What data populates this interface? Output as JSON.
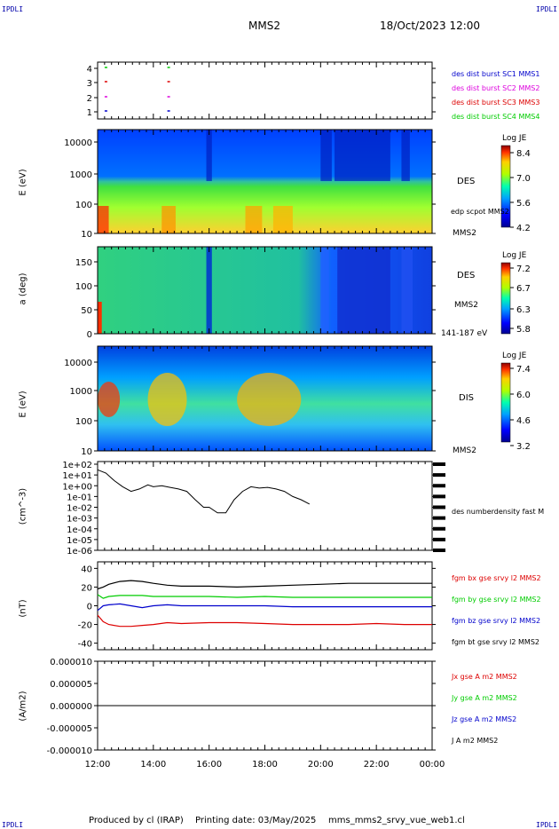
{
  "header": {
    "corner_tl": "IPDLI",
    "corner_tr": "IPDLI",
    "corner_bl": "IPDLI",
    "corner_br": "IPDLI",
    "spacecraft": "MMS2",
    "date": "18/Oct/2023 12:00"
  },
  "footer": {
    "produced": "Produced by cl (IRAP)",
    "printing": "Printing date: 03/May/2025",
    "file": "mms_mms2_srvy_vue_web1.cl"
  },
  "colors": {
    "blue": "#0000cc",
    "magenta": "#dd00dd",
    "red": "#dd0000",
    "green": "#00cc00",
    "black": "#000000"
  },
  "x_axis": {
    "ticks": [
      "12:00",
      "14:00",
      "16:00",
      "18:00",
      "20:00",
      "22:00",
      "00:00"
    ]
  },
  "chart_data": [
    {
      "type": "scatter",
      "panel": "burst",
      "yticks": [
        "4",
        "3",
        "2",
        "1"
      ],
      "legend": [
        "des dist burst SC1 MMS1",
        "des dist burst SC2 MMS2",
        "des dist burst SC3 MMS3",
        "des dist burst SC4 MMS4"
      ],
      "legend_colors": [
        "#0000cc",
        "#dd00dd",
        "#dd0000",
        "#00cc00"
      ],
      "marks": [
        {
          "sc": 4,
          "times": [
            12.3,
            14.55
          ]
        },
        {
          "sc": 3,
          "times": [
            12.3,
            14.55
          ]
        },
        {
          "sc": 2,
          "times": [
            12.3,
            14.55
          ]
        },
        {
          "sc": 1,
          "times": [
            12.3,
            14.55
          ]
        }
      ]
    },
    {
      "type": "heatmap",
      "panel": "des_energy",
      "ylabel": "E (eV)",
      "yticks": [
        "10000",
        "1000",
        "100",
        "10"
      ],
      "label": "DES",
      "sub_label": "MMS2",
      "overlay_label": "edp scpot MMS2",
      "colorbar": {
        "title": "Log JE",
        "ticks": [
          "8.4",
          "7.0",
          "5.6",
          "4.2"
        ]
      }
    },
    {
      "type": "heatmap",
      "panel": "des_pitch",
      "ylabel": "a (deg)",
      "yticks": [
        "150",
        "100",
        "50",
        "0"
      ],
      "label": "DES",
      "sub_label": "MMS2",
      "energy_label": "141-187 eV",
      "colorbar": {
        "title": "Log JE",
        "ticks": [
          "7.2",
          "6.7",
          "6.3",
          "5.8"
        ]
      }
    },
    {
      "type": "heatmap",
      "panel": "dis_energy",
      "ylabel": "E (eV)",
      "yticks": [
        "10000",
        "1000",
        "100",
        "10"
      ],
      "label": "DIS",
      "sub_label": "MMS2",
      "colorbar": {
        "title": "Log JE",
        "ticks": [
          "7.4",
          "6.0",
          "4.6",
          "3.2"
        ]
      }
    },
    {
      "type": "line",
      "panel": "density",
      "ylabel": "(cm^-3)",
      "yticks": [
        "1e+02",
        "1e+01",
        "1e+00",
        "1e-01",
        "1e-02",
        "1e-03",
        "1e-04",
        "1e-05",
        "1e-06"
      ],
      "legend": [
        "des numberdensity fast M"
      ],
      "x": [
        12.0,
        12.3,
        12.6,
        12.9,
        13.2,
        13.5,
        13.8,
        14.0,
        14.3,
        14.6,
        14.9,
        15.2,
        15.5,
        15.8,
        16.0,
        16.3,
        16.6,
        16.9,
        17.2,
        17.5,
        17.8,
        18.1,
        18.4,
        18.7,
        19.0,
        19.3,
        19.6
      ],
      "y": [
        30,
        15,
        3,
        0.8,
        0.3,
        0.5,
        1.2,
        0.8,
        1.0,
        0.7,
        0.5,
        0.3,
        0.05,
        0.01,
        0.01,
        0.003,
        0.003,
        0.05,
        0.3,
        0.8,
        0.6,
        0.7,
        0.5,
        0.3,
        0.1,
        0.05,
        0.02
      ]
    },
    {
      "type": "line",
      "panel": "bfield",
      "ylabel": "(nT)",
      "yticks": [
        "40",
        "20",
        "0",
        "-20",
        "-40"
      ],
      "ylim": [
        -47,
        47
      ],
      "legend": [
        "fgm bx gse srvy l2 MMS2",
        "fgm by gse srvy l2 MMS2",
        "fgm bz gse srvy l2 MMS2",
        "fgm bt gse srvy l2 MMS2"
      ],
      "legend_colors": [
        "#dd0000",
        "#00cc00",
        "#0000cc",
        "#000000"
      ],
      "x": [
        12.0,
        12.2,
        12.4,
        12.8,
        13.2,
        13.6,
        14.0,
        14.5,
        15.0,
        16.0,
        17.0,
        18.0,
        19.0,
        20.0,
        21.0,
        22.0,
        23.0,
        24.0
      ],
      "series": [
        {
          "values": [
            -10,
            -17,
            -20,
            -22,
            -22,
            -21,
            -20,
            -18,
            -19,
            -18,
            -18,
            -19,
            -20,
            -20,
            -20,
            -19,
            -20,
            -20
          ]
        },
        {
          "values": [
            12,
            8,
            10,
            11,
            11,
            11,
            10,
            10,
            10,
            10,
            9,
            10,
            9,
            9,
            9,
            9,
            9,
            9
          ]
        },
        {
          "values": [
            -5,
            0,
            1,
            2,
            0,
            -2,
            0,
            1,
            0,
            0,
            0,
            0,
            -1,
            -1,
            -1,
            -1,
            -1,
            -1
          ]
        },
        {
          "values": [
            18,
            20,
            23,
            26,
            27,
            26,
            24,
            22,
            21,
            21,
            20,
            21,
            22,
            23,
            24,
            24,
            24,
            24
          ]
        }
      ]
    },
    {
      "type": "line",
      "panel": "current",
      "ylabel": "(A/m2)",
      "yticks": [
        "0.000010",
        "0.000005",
        "0.000000",
        "-0.000005",
        "-0.000010"
      ],
      "ylim": [
        -1e-05,
        1e-05
      ],
      "legend": [
        "Jx gse A m2 MMS2",
        "Jy gse A m2 MMS2",
        "Jz gse A m2 MMS2",
        "J A m2 MMS2"
      ],
      "legend_colors": [
        "#dd0000",
        "#00cc00",
        "#0000cc",
        "#000000"
      ],
      "x": [
        12.0,
        24.0
      ],
      "y": [
        0,
        0
      ]
    }
  ]
}
